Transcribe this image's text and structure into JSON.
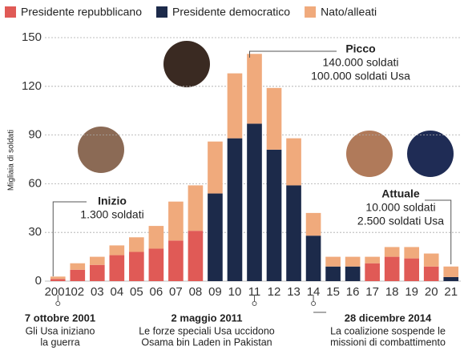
{
  "chart_data": {
    "type": "stacked-bar",
    "y_label": "Migliaia di soldati",
    "categories": [
      "2001",
      "02",
      "03",
      "04",
      "05",
      "06",
      "07",
      "08",
      "09",
      "10",
      "11",
      "12",
      "13",
      "14",
      "15",
      "16",
      "17",
      "18",
      "19",
      "20",
      "21"
    ],
    "series": [
      {
        "name": "Presidente repubblicano",
        "color": "#e05a56",
        "values": [
          1.3,
          7,
          10,
          16,
          18,
          20,
          25,
          31,
          null,
          null,
          null,
          null,
          null,
          null,
          null,
          null,
          11,
          15,
          14,
          9,
          null
        ]
      },
      {
        "name": "Presidente democratico",
        "color": "#1c2a4a",
        "values": [
          null,
          null,
          null,
          null,
          null,
          null,
          null,
          null,
          54,
          88,
          97,
          81,
          59,
          28,
          9,
          9,
          null,
          null,
          null,
          null,
          2.5
        ]
      },
      {
        "name": "Nato/alleati",
        "color": "#f0aa7c",
        "values": [
          1.5,
          4,
          5,
          6,
          9,
          14,
          24,
          28,
          32,
          40,
          43,
          38,
          29,
          14,
          6,
          6,
          4,
          6,
          7,
          8,
          6.5
        ]
      }
    ],
    "ylim": [
      0,
      150
    ],
    "yticks": [
      0,
      30,
      60,
      90,
      120,
      150
    ],
    "grid": true,
    "annotations": [
      {
        "title": "Inizio",
        "lines": [
          "1.300 soldati"
        ]
      },
      {
        "title": "Picco",
        "lines": [
          "140.000 soldati",
          "100.000 soldati Usa"
        ]
      },
      {
        "title": "Attuale",
        "lines": [
          "10.000 soldati",
          "2.500 soldati Usa"
        ]
      }
    ],
    "events": [
      {
        "date": "7 ottobre 2001",
        "lines": [
          "Gli Usa iniziano",
          "la guerra"
        ]
      },
      {
        "date": "2 maggio 2011",
        "lines": [
          "Le forze speciali Usa uccidono",
          "Osama bin Laden in Pakistan"
        ]
      },
      {
        "date": "28 dicembre 2014",
        "lines": [
          "La coalizione sospende le",
          "missioni di combattimento"
        ]
      }
    ]
  }
}
